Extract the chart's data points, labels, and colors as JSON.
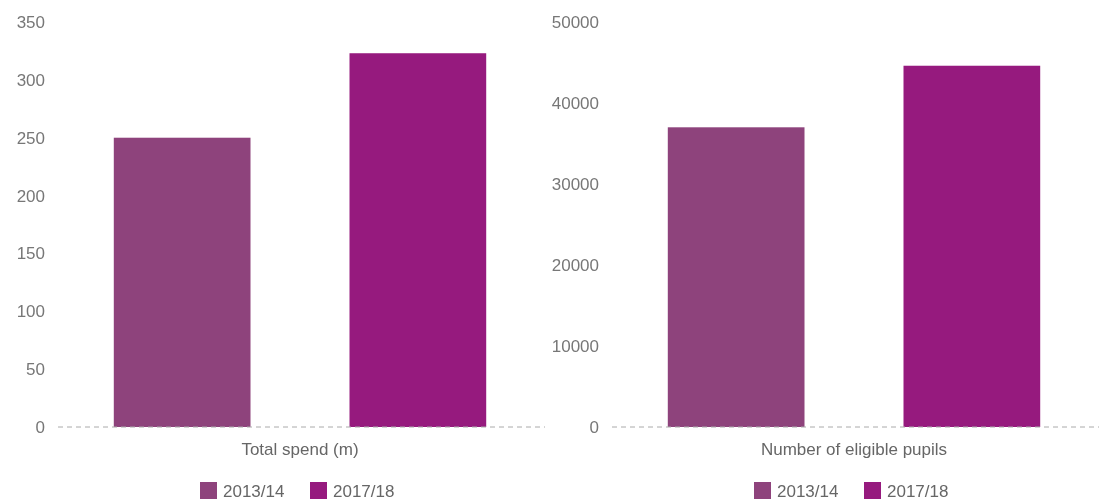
{
  "chart_data": [
    {
      "type": "bar",
      "categories": [
        "Total spend (m)"
      ],
      "series": [
        {
          "name": "2013/14",
          "color": "#8e437c",
          "values": [
            250
          ]
        },
        {
          "name": "2017/18",
          "color": "#961a7e",
          "values": [
            323
          ]
        }
      ],
      "ylim": [
        0,
        350
      ],
      "yticks": [
        0,
        50,
        100,
        150,
        200,
        250,
        300,
        350
      ],
      "legend": "bottom",
      "grid": false
    },
    {
      "type": "bar",
      "categories": [
        "Number of eligible pupils"
      ],
      "series": [
        {
          "name": "2013/14",
          "color": "#8e437c",
          "values": [
            37000
          ]
        },
        {
          "name": "2017/18",
          "color": "#961a7e",
          "values": [
            44600
          ]
        }
      ],
      "ylim": [
        0,
        50000
      ],
      "yticks": [
        0,
        10000,
        20000,
        30000,
        40000,
        50000
      ],
      "legend": "bottom",
      "grid": false
    }
  ]
}
